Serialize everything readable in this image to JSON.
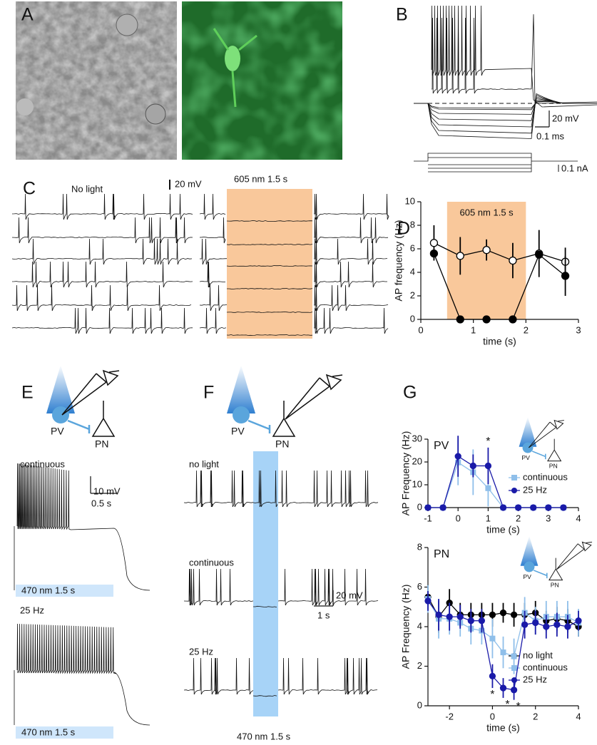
{
  "panel_labels": [
    "A",
    "B",
    "C",
    "D",
    "E",
    "F",
    "G"
  ],
  "panel_b": {
    "scale_v": "20 mV",
    "scale_t": "0.1 ms",
    "scale_i": "0.1 nA"
  },
  "panel_c": {
    "left_title": "No light",
    "scale_v": "20 mV",
    "right_title": "605 nm 1.5 s"
  },
  "panel_e": {
    "cells": [
      "PV",
      "PN"
    ],
    "traces": [
      "continuous",
      "25 Hz"
    ],
    "scale_v": "10 mV",
    "scale_t": "0.5 s",
    "light": [
      "470 nm 1.5 s",
      "470 nm 1.5 s"
    ]
  },
  "panel_f": {
    "cells": [
      "PV",
      "PN"
    ],
    "traces": [
      "no light",
      "continuous",
      "25 Hz"
    ],
    "scale_v": "20 mV",
    "scale_t": "1 s",
    "light": "470 nm 1.5 s"
  },
  "panel_g": {
    "pv_inset": [
      "PV",
      "PN"
    ],
    "pn_inset": [
      "PV",
      "PN"
    ]
  },
  "chart_data": [
    {
      "type": "line",
      "xlabel": "time (s)",
      "ylabel": "AP frequency (Hz)",
      "shade": [
        0.5,
        2
      ],
      "shade_label": "605 nm 1.5 s",
      "shade_color": "#f9c89b",
      "x": [
        0.25,
        0.75,
        1.25,
        1.75,
        2.25,
        2.75
      ],
      "series": [
        {
          "color": "#000000",
          "marker": "open-circle",
          "values": [
            6.5,
            5.4,
            5.9,
            5.0,
            5.6,
            4.9
          ],
          "errors": [
            1.5,
            1.6,
            0.9,
            1.5,
            2.0,
            1.2
          ]
        },
        {
          "color": "#000000",
          "marker": "circle",
          "values": [
            5.6,
            0,
            0,
            0,
            5.5,
            3.7
          ],
          "errors": [
            0,
            0,
            0,
            0,
            0,
            1.7
          ]
        }
      ],
      "xlim": [
        0,
        3
      ],
      "xticks": [
        0,
        1,
        2,
        3
      ],
      "ylim": [
        0,
        10
      ],
      "yticks": [
        0,
        2,
        4,
        6,
        8,
        10
      ]
    },
    {
      "type": "line",
      "title": "PV",
      "xlabel": "time (s)",
      "ylabel": "AP Frequency (Hz)",
      "x": [
        -1,
        -0.5,
        0,
        0.5,
        1,
        1.5,
        2,
        2.5,
        3,
        3.5
      ],
      "series": [
        {
          "name": "continuous",
          "color": "#8fbfea",
          "marker": "square",
          "values": [
            0,
            0,
            19.8,
            15.5,
            8.5,
            0,
            0,
            0,
            0,
            0
          ],
          "errors": [
            0,
            0,
            10,
            10,
            8,
            0,
            0,
            0,
            0,
            0
          ]
        },
        {
          "name": "25 Hz",
          "color": "#1a1aa8",
          "marker": "circle",
          "values": [
            0,
            0,
            22.5,
            18.3,
            18.3,
            0,
            0,
            0,
            0,
            0
          ],
          "errors": [
            0,
            0,
            9,
            5,
            8,
            0,
            0,
            0,
            0,
            0
          ]
        }
      ],
      "annotation": "*",
      "annotation_x": [
        1
      ],
      "annotation_position": "above",
      "legend": "center right",
      "xlim": [
        -1,
        4
      ],
      "xticks": [
        -1,
        0,
        1,
        2,
        3,
        4
      ],
      "ylim": [
        0,
        30
      ],
      "yticks": [
        0,
        10,
        20,
        30
      ]
    },
    {
      "type": "line",
      "title": "PN",
      "xlabel": "time (s)",
      "ylabel": "AP Frequency (Hz)",
      "x": [
        -3,
        -2.5,
        -2,
        -1.5,
        -1,
        -0.5,
        0,
        0.5,
        1,
        1.5,
        2,
        2.5,
        3,
        3.5,
        4
      ],
      "series": [
        {
          "name": "no light",
          "color": "#000000",
          "marker": "circle",
          "values": [
            5.5,
            4.5,
            5.2,
            4.6,
            4.6,
            4.6,
            4.6,
            4.7,
            4.6,
            4.6,
            4.7,
            4.3,
            4.4,
            4.3,
            4.0
          ],
          "errors": [
            0.6,
            0.8,
            0.7,
            0.6,
            0.6,
            0.6,
            0.6,
            0.5,
            0.6,
            0.6,
            0.6,
            0.5,
            0.6,
            0.6,
            0.5
          ]
        },
        {
          "name": "continuous",
          "color": "#8fbfea",
          "marker": "square",
          "values": [
            5.4,
            4.4,
            4.4,
            4.2,
            3.9,
            3.8,
            3.4,
            2.7,
            2.5,
            4.7,
            4.3,
            4.5,
            4.5,
            4.5,
            4.2
          ],
          "errors": [
            0.7,
            1.0,
            0.8,
            0.7,
            0.8,
            0.7,
            1.0,
            0.8,
            0.9,
            0.8,
            0.7,
            0.8,
            0.8,
            0.8,
            0.7
          ]
        },
        {
          "name": "25 Hz",
          "color": "#1a1aa8",
          "marker": "circle",
          "values": [
            5.3,
            4.6,
            4.5,
            4.5,
            4.3,
            4.3,
            1.5,
            0.9,
            0.8,
            4.1,
            4.2,
            4.0,
            4.1,
            4.0,
            4.3
          ],
          "errors": [
            0.5,
            0.8,
            0.7,
            0.6,
            0.6,
            0.6,
            0.6,
            0.5,
            0.5,
            0.7,
            0.6,
            0.6,
            0.6,
            0.6,
            0.5
          ]
        }
      ],
      "annotation": "*",
      "annotation_x": [
        0,
        0.5,
        1
      ],
      "annotation_position": "below",
      "legend": "lower right",
      "xlim": [
        -3,
        4
      ],
      "xticks": [
        -2,
        0,
        2,
        4
      ],
      "ylim": [
        0,
        8
      ],
      "yticks": [
        0,
        2,
        4,
        6,
        8
      ]
    }
  ]
}
